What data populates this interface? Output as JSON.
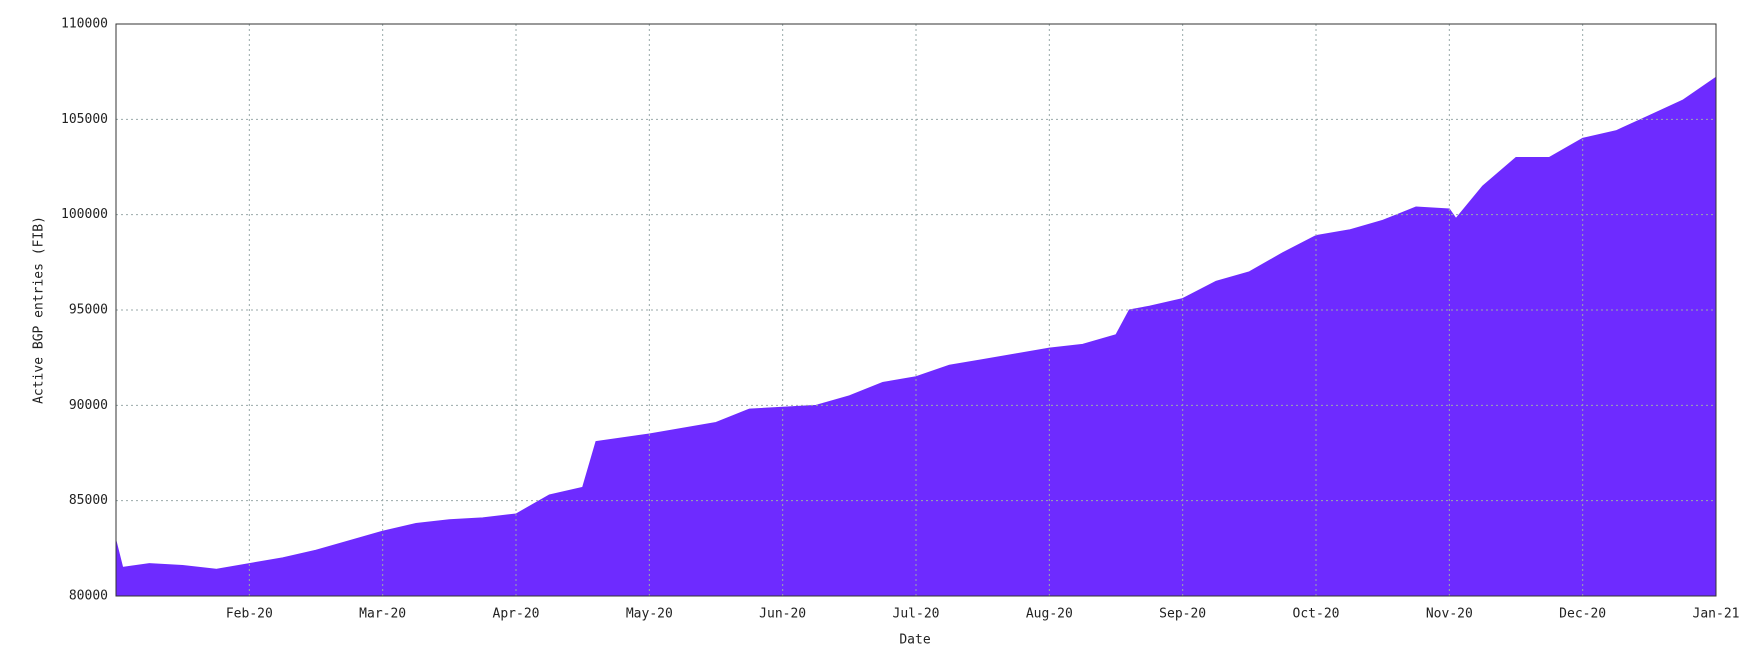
{
  "chart_data": {
    "type": "area",
    "x_label": "Date",
    "y_label": "Active BGP entries (FIB)",
    "color": "#6e2bff",
    "grid": true,
    "x": [
      0,
      0.05,
      0.25,
      0.5,
      0.75,
      1.0,
      1.25,
      1.5,
      1.75,
      2.0,
      2.25,
      2.5,
      2.75,
      3.0,
      3.25,
      3.5,
      3.6,
      4.0,
      4.5,
      4.75,
      5.0,
      5.25,
      5.5,
      5.75,
      6.0,
      6.25,
      6.5,
      6.75,
      7.0,
      7.25,
      7.5,
      7.6,
      7.75,
      8.0,
      8.25,
      8.5,
      8.75,
      9.0,
      9.25,
      9.5,
      9.75,
      10.0,
      10.05,
      10.25,
      10.5,
      10.75,
      11.0,
      11.25,
      11.5,
      11.75,
      12.0
    ],
    "values": [
      82900,
      81500,
      81700,
      81600,
      81400,
      81700,
      82000,
      82400,
      82900,
      83400,
      83800,
      84000,
      84100,
      84300,
      85300,
      85700,
      88100,
      88500,
      89100,
      89800,
      89900,
      90000,
      90500,
      91200,
      91500,
      92100,
      92400,
      92700,
      93000,
      93200,
      93700,
      95000,
      95200,
      95600,
      96500,
      97000,
      98000,
      98900,
      99200,
      99700,
      100400,
      100300,
      99800,
      101500,
      103000,
      103000,
      104000,
      104400,
      105200,
      106000,
      107200
    ],
    "xlim": [
      0,
      12
    ],
    "xticks": [
      {
        "value": 1,
        "label": "Feb-20"
      },
      {
        "value": 2,
        "label": "Mar-20"
      },
      {
        "value": 3,
        "label": "Apr-20"
      },
      {
        "value": 4,
        "label": "May-20"
      },
      {
        "value": 5,
        "label": "Jun-20"
      },
      {
        "value": 6,
        "label": "Jul-20"
      },
      {
        "value": 7,
        "label": "Aug-20"
      },
      {
        "value": 8,
        "label": "Sep-20"
      },
      {
        "value": 9,
        "label": "Oct-20"
      },
      {
        "value": 10,
        "label": "Nov-20"
      },
      {
        "value": 11,
        "label": "Dec-20"
      },
      {
        "value": 12,
        "label": "Jan-21"
      }
    ],
    "ylim": [
      80000,
      110000
    ],
    "yticks": [
      80000,
      85000,
      90000,
      95000,
      100000,
      105000,
      110000
    ]
  }
}
